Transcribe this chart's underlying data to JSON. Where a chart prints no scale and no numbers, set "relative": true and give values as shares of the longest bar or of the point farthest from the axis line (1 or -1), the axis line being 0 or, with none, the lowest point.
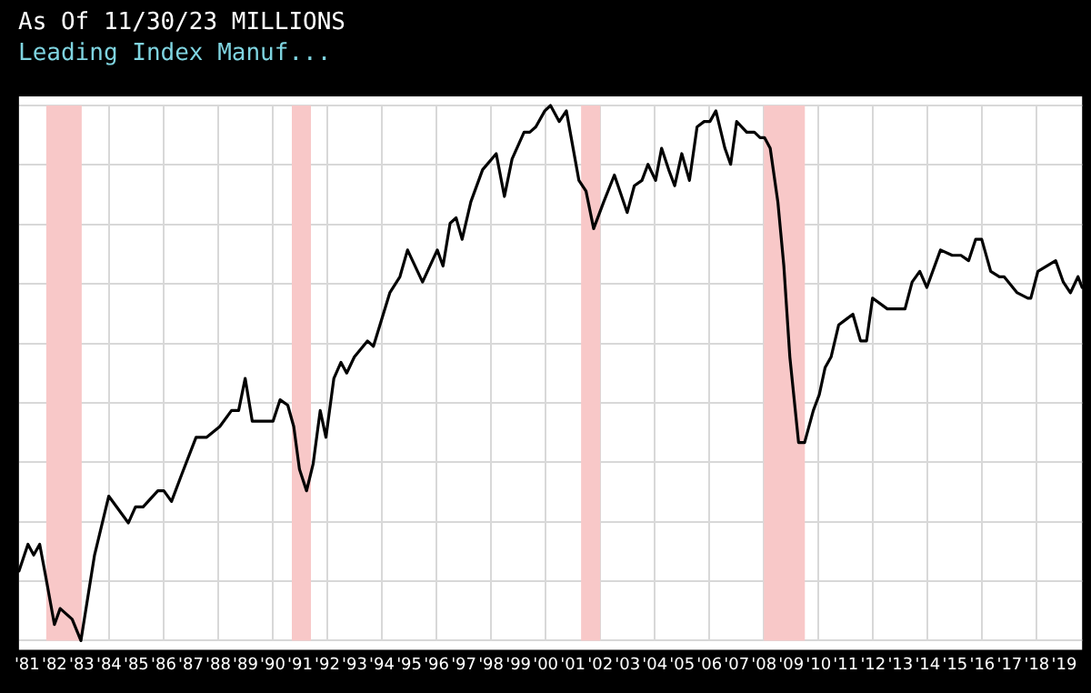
{
  "chart_data": {
    "type": "line",
    "title": "Leading Index Manuf...",
    "subtitle": "As Of 11/30/23 MILLIONS",
    "relative": true,
    "grid": true,
    "legend": false,
    "marker": "none",
    "line_style": "solid",
    "xlim": [
      1980.7,
      2019.66
    ],
    "xticks": [
      {
        "value": 1981,
        "label": "'81"
      },
      {
        "value": 1982,
        "label": "'82"
      },
      {
        "value": 1983,
        "label": "'83"
      },
      {
        "value": 1984,
        "label": "'84"
      },
      {
        "value": 1985,
        "label": "'85"
      },
      {
        "value": 1986,
        "label": "'86"
      },
      {
        "value": 1987,
        "label": "'87"
      },
      {
        "value": 1988,
        "label": "'88"
      },
      {
        "value": 1989,
        "label": "'89"
      },
      {
        "value": 1990,
        "label": "'90"
      },
      {
        "value": 1991,
        "label": "'91"
      },
      {
        "value": 1992,
        "label": "'92"
      },
      {
        "value": 1993,
        "label": "'93"
      },
      {
        "value": 1994,
        "label": "'94"
      },
      {
        "value": 1995,
        "label": "'95"
      },
      {
        "value": 1996,
        "label": "'96"
      },
      {
        "value": 1997,
        "label": "'97"
      },
      {
        "value": 1998,
        "label": "'98"
      },
      {
        "value": 1999,
        "label": "'99"
      },
      {
        "value": 2000,
        "label": "'00"
      },
      {
        "value": 2001,
        "label": "'01"
      },
      {
        "value": 2002,
        "label": "'02"
      },
      {
        "value": 2003,
        "label": "'03"
      },
      {
        "value": 2004,
        "label": "'04"
      },
      {
        "value": 2005,
        "label": "'05"
      },
      {
        "value": 2006,
        "label": "'06"
      },
      {
        "value": 2007,
        "label": "'07"
      },
      {
        "value": 2008,
        "label": "'08"
      },
      {
        "value": 2009,
        "label": "'09"
      },
      {
        "value": 2010,
        "label": "'10"
      },
      {
        "value": 2011,
        "label": "'11"
      },
      {
        "value": 2012,
        "label": "'12"
      },
      {
        "value": 2013,
        "label": "'13"
      },
      {
        "value": 2014,
        "label": "'14"
      },
      {
        "value": 2015,
        "label": "'15"
      },
      {
        "value": 2016,
        "label": "'16"
      },
      {
        "value": 2017,
        "label": "'17"
      },
      {
        "value": 2018,
        "label": "'18"
      },
      {
        "value": 2019,
        "label": "'19"
      }
    ],
    "bands": [
      {
        "axis": "x",
        "from": 1981.7,
        "to": 1983.0,
        "color": "#f8c8c8"
      },
      {
        "axis": "x",
        "from": 1990.7,
        "to": 1991.4,
        "color": "#f8c8c8"
      },
      {
        "axis": "x",
        "from": 2001.3,
        "to": 2002.0,
        "color": "#f8c8c8"
      },
      {
        "axis": "x",
        "from": 2008.0,
        "to": 2009.5,
        "color": "#f8c8c8"
      }
    ],
    "series": [
      {
        "color": "#000000",
        "x": [
          1980.7,
          1981.03,
          1981.24,
          1981.46,
          1981.68,
          1982.0,
          1982.21,
          1982.65,
          1982.97,
          1983.47,
          1983.99,
          1984.71,
          1984.97,
          1985.25,
          1985.79,
          1986.01,
          1986.29,
          1986.66,
          1987.19,
          1987.58,
          1988.06,
          1988.49,
          1988.75,
          1988.99,
          1989.25,
          1990.01,
          1990.27,
          1990.55,
          1990.77,
          1990.98,
          1991.24,
          1991.48,
          1991.74,
          1991.95,
          1992.24,
          1992.5,
          1992.71,
          1992.99,
          1993.47,
          1993.69,
          1994.29,
          1994.66,
          1994.94,
          1995.49,
          1996.03,
          1996.24,
          1996.5,
          1996.72,
          1996.94,
          1997.26,
          1997.69,
          1998.19,
          1998.49,
          1998.77,
          1999.21,
          1999.42,
          1999.64,
          1999.97,
          2000.18,
          2000.5,
          2000.76,
          2001.22,
          2001.48,
          2001.76,
          2002.13,
          2002.52,
          2002.99,
          2003.25,
          2003.53,
          2003.75,
          2004.03,
          2004.25,
          2004.51,
          2004.73,
          2004.99,
          2005.27,
          2005.55,
          2005.81,
          2006.02,
          2006.24,
          2006.57,
          2006.78,
          2007.0,
          2007.37,
          2007.65,
          2007.86,
          2008.02,
          2008.23,
          2008.51,
          2008.73,
          2008.95,
          2009.27,
          2009.49,
          2009.81,
          2010.03,
          2010.24,
          2010.46,
          2010.74,
          2011.0,
          2011.26,
          2011.54,
          2011.76,
          2011.98,
          2012.52,
          2013.17,
          2013.43,
          2013.71,
          2013.97,
          2014.47,
          2014.9,
          2015.22,
          2015.5,
          2015.76,
          2015.98,
          2016.31,
          2016.63,
          2016.8,
          2017.28,
          2017.67,
          2017.78,
          2018.04,
          2018.69,
          2018.97,
          2019.23,
          2019.51,
          2019.66
        ],
        "values": [
          0.13,
          0.18,
          0.16,
          0.18,
          0.12,
          0.03,
          0.06,
          0.04,
          0.0,
          0.16,
          0.27,
          0.22,
          0.25,
          0.25,
          0.28,
          0.28,
          0.26,
          0.31,
          0.38,
          0.38,
          0.4,
          0.43,
          0.43,
          0.49,
          0.41,
          0.41,
          0.45,
          0.44,
          0.4,
          0.32,
          0.28,
          0.33,
          0.43,
          0.38,
          0.49,
          0.52,
          0.5,
          0.53,
          0.56,
          0.55,
          0.65,
          0.68,
          0.73,
          0.67,
          0.73,
          0.7,
          0.78,
          0.79,
          0.75,
          0.82,
          0.88,
          0.91,
          0.83,
          0.9,
          0.95,
          0.95,
          0.96,
          0.99,
          1.0,
          0.97,
          0.99,
          0.86,
          0.84,
          0.77,
          0.82,
          0.87,
          0.8,
          0.85,
          0.86,
          0.89,
          0.86,
          0.92,
          0.88,
          0.85,
          0.91,
          0.86,
          0.96,
          0.97,
          0.97,
          0.99,
          0.92,
          0.89,
          0.97,
          0.95,
          0.95,
          0.94,
          0.94,
          0.92,
          0.82,
          0.7,
          0.53,
          0.37,
          0.37,
          0.43,
          0.46,
          0.51,
          0.53,
          0.59,
          0.6,
          0.61,
          0.56,
          0.56,
          0.64,
          0.62,
          0.62,
          0.67,
          0.69,
          0.66,
          0.73,
          0.72,
          0.72,
          0.71,
          0.75,
          0.75,
          0.69,
          0.68,
          0.68,
          0.65,
          0.64,
          0.64,
          0.69,
          0.71,
          0.67,
          0.65,
          0.68,
          0.66
        ]
      }
    ]
  }
}
